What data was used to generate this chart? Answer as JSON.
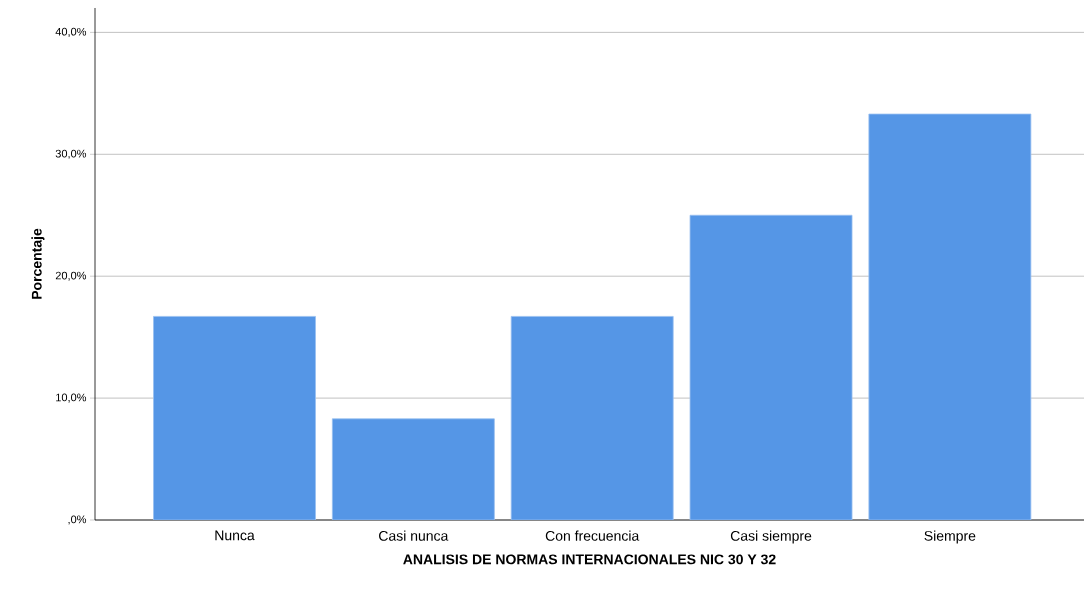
{
  "chart_data": {
    "type": "bar",
    "xlabel": "ANALISIS DE NORMAS INTERNACIONALES NIC 30 Y 32",
    "ylabel": "Porcentaje",
    "categories": [
      "Nunca",
      "Casi nunca",
      "Con frecuencia",
      "Casi siempre",
      "Siempre"
    ],
    "values": [
      16.7,
      8.3,
      16.7,
      25.0,
      33.3
    ],
    "color": "#5596e6",
    "ylim": [
      0,
      42
    ],
    "yticks": [
      {
        "value": 0,
        "label": ",0%"
      },
      {
        "value": 10,
        "label": "10,0%"
      },
      {
        "value": 20,
        "label": "20,0%"
      },
      {
        "value": 30,
        "label": "30,0%"
      },
      {
        "value": 40,
        "label": "40,0%"
      }
    ],
    "grid": "y"
  }
}
